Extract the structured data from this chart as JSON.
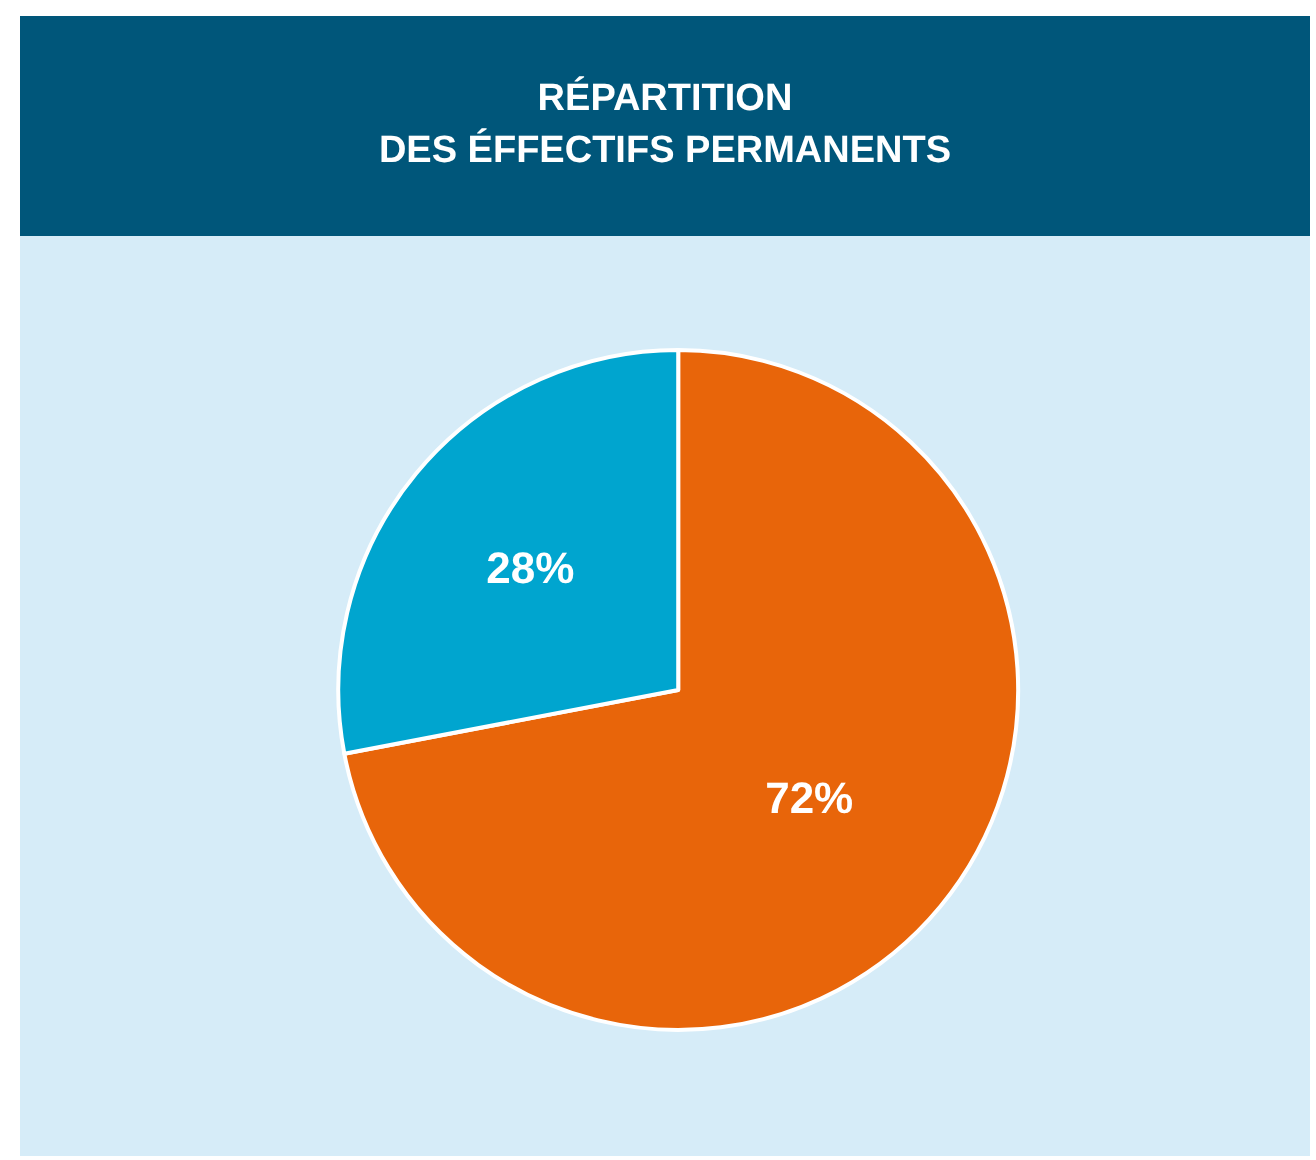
{
  "chart_data": {
    "type": "pie",
    "title": "RÉPARTITION\nDES ÉFFECTIFS PERMANENTS",
    "categories": [
      null,
      null
    ],
    "values": [
      72,
      28
    ],
    "value_labels": [
      "72%",
      "28%"
    ],
    "colors": [
      "#e8650a",
      "#00a5cf"
    ],
    "legend": false
  }
}
